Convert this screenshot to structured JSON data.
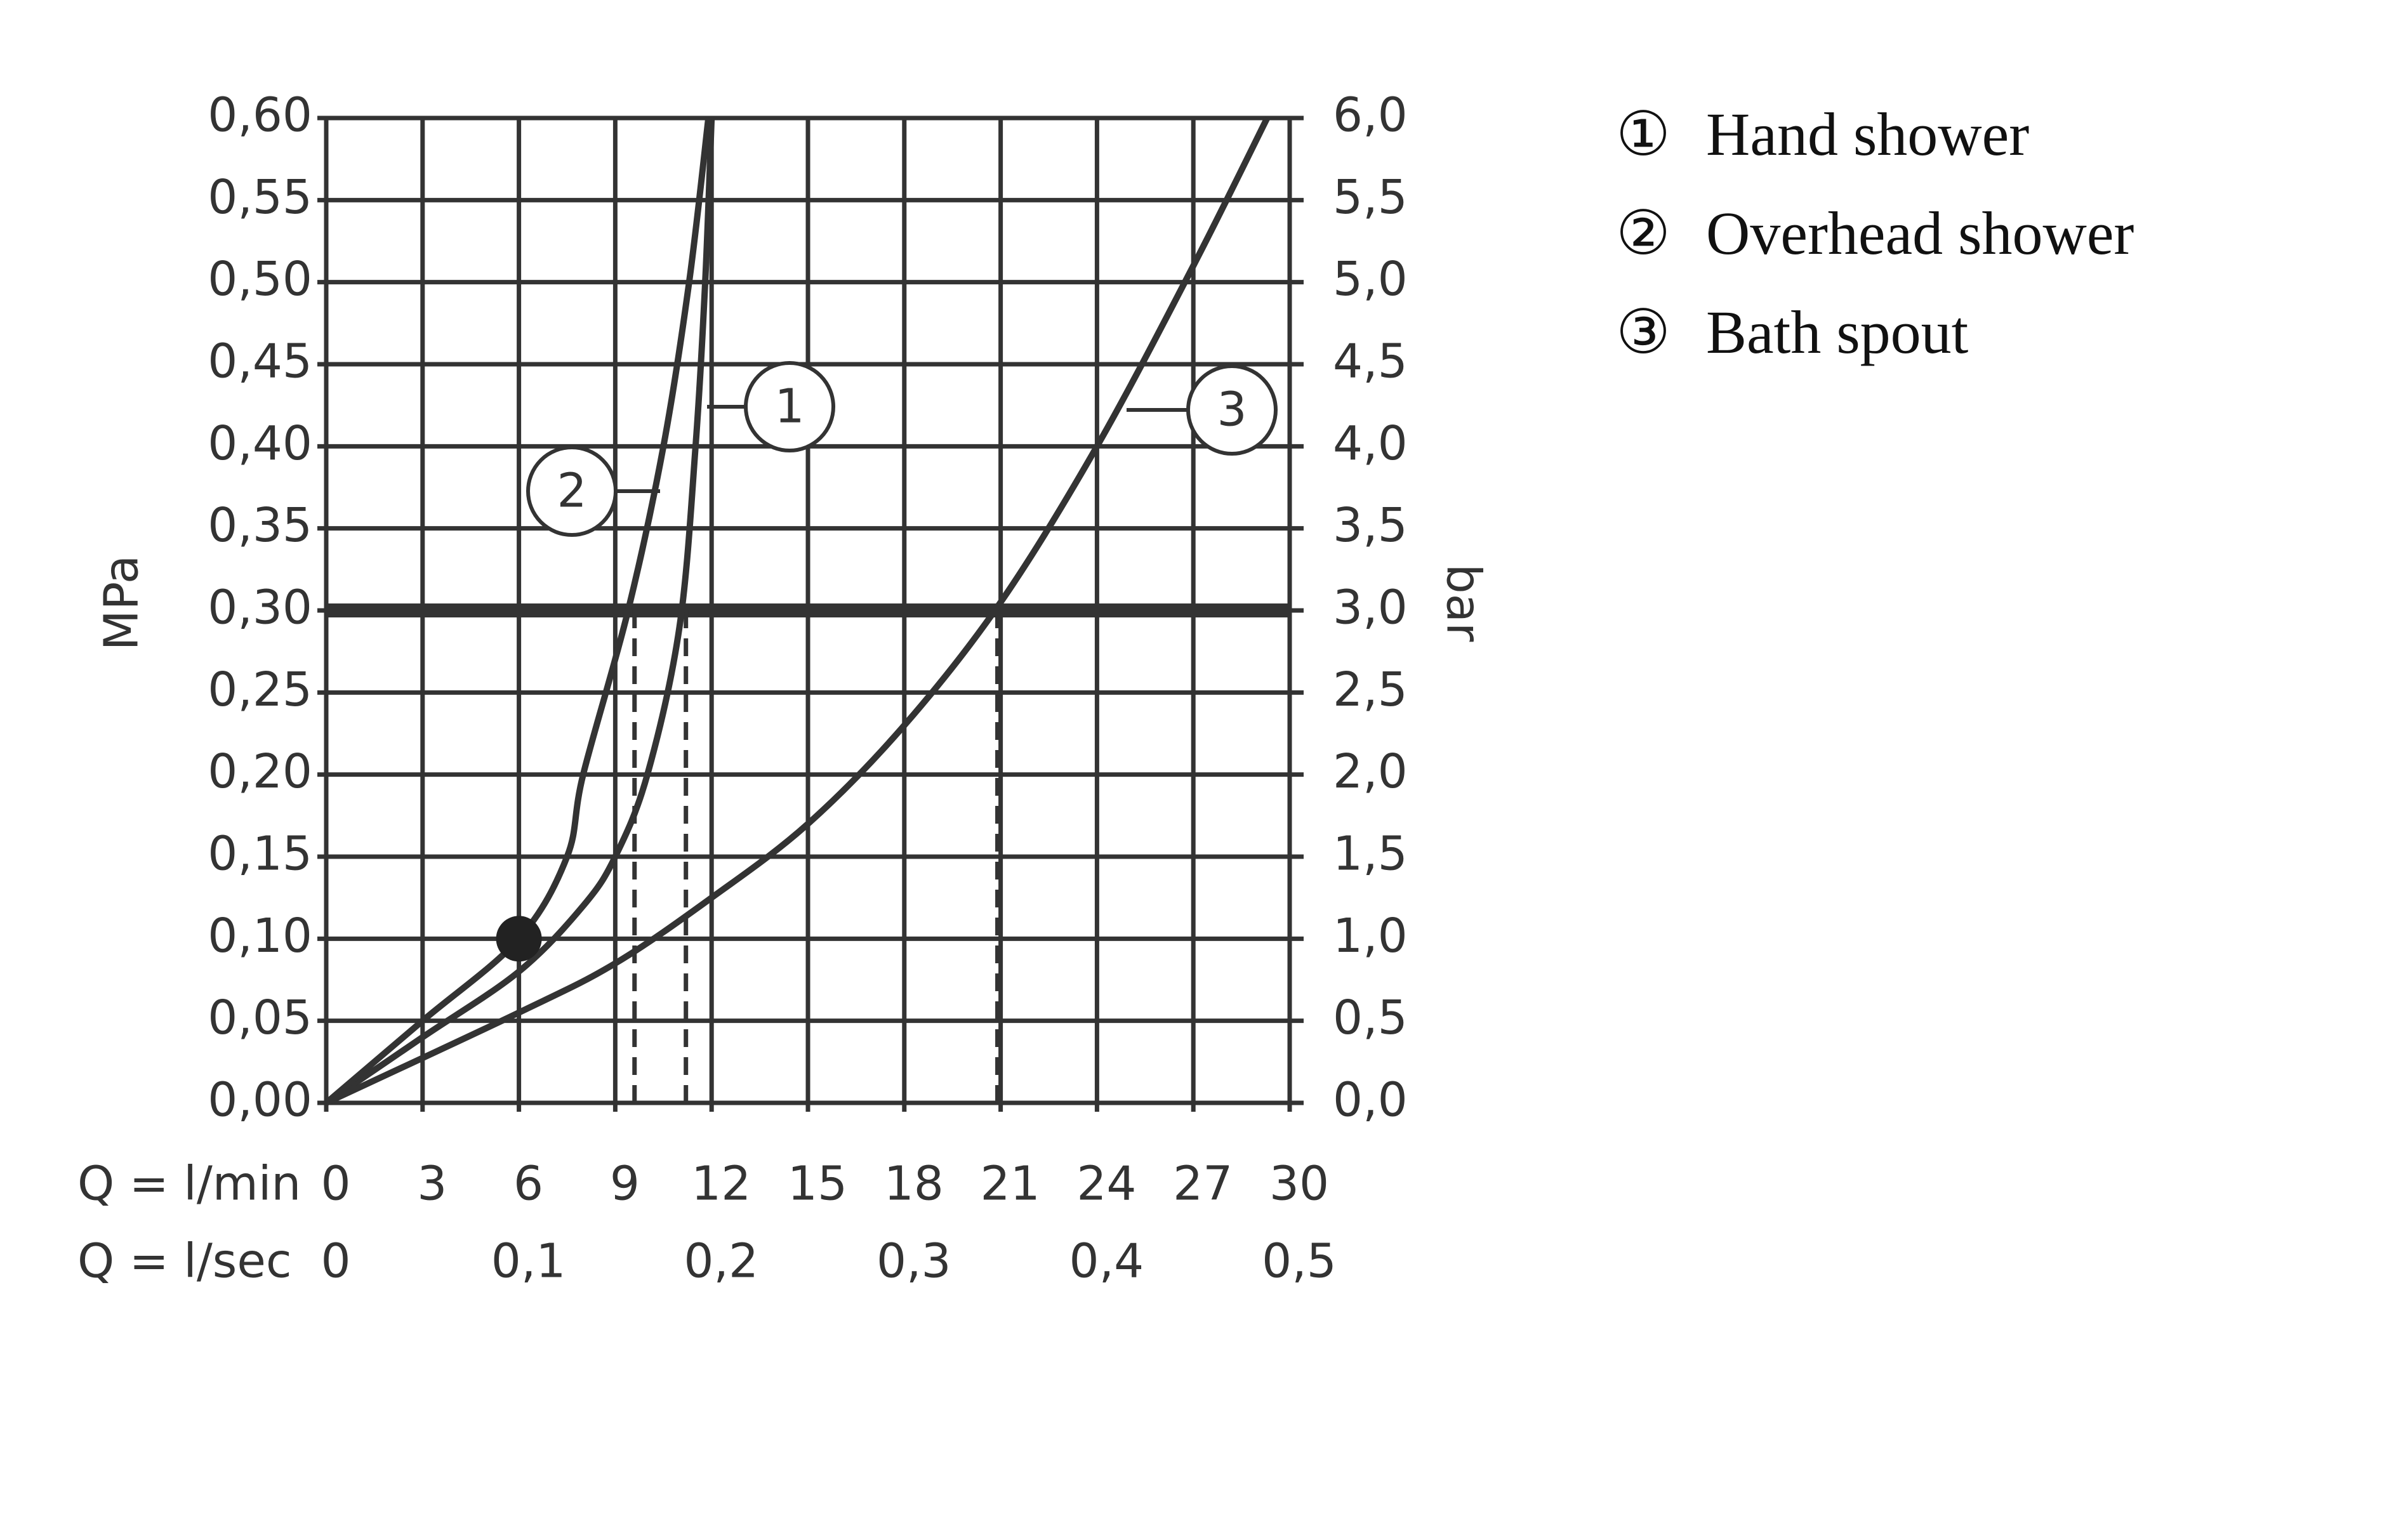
{
  "chart_data": {
    "type": "line",
    "y_label": "MPa",
    "y2_label": "bar",
    "x_label": "Q = l/min",
    "x2_label": "Q = l/sec",
    "xlim": [
      0,
      30
    ],
    "xticks": [
      0,
      3,
      6,
      9,
      12,
      15,
      18,
      21,
      24,
      27,
      30
    ],
    "x2lim": [
      0,
      0.5
    ],
    "x2ticks": [
      0,
      {
        "value": 0.1,
        "label": "0,1"
      },
      {
        "value": 0.2,
        "label": "0,2"
      },
      {
        "value": 0.3,
        "label": "0,3"
      },
      {
        "value": 0.4,
        "label": "0,4"
      },
      {
        "value": 0.5,
        "label": "0,5"
      }
    ],
    "ylim": [
      0,
      0.6
    ],
    "yticks": [
      {
        "value": 0,
        "label": "0,00"
      },
      {
        "value": 0.05,
        "label": "0,05"
      },
      {
        "value": 0.1,
        "label": "0,10"
      },
      {
        "value": 0.15,
        "label": "0,15"
      },
      {
        "value": 0.2,
        "label": "0,20"
      },
      {
        "value": 0.25,
        "label": "0,25"
      },
      {
        "value": 0.3,
        "label": "0,30"
      },
      {
        "value": 0.35,
        "label": "0,35"
      },
      {
        "value": 0.4,
        "label": "0,40"
      },
      {
        "value": 0.45,
        "label": "0,45"
      },
      {
        "value": 0.5,
        "label": "0,50"
      },
      {
        "value": 0.55,
        "label": "0,55"
      },
      {
        "value": 0.6,
        "label": "0,60"
      }
    ],
    "y2lim": [
      0,
      6
    ],
    "y2ticks": [
      {
        "value": 0,
        "label": "0,0"
      },
      {
        "value": 0.5,
        "label": "0,5"
      },
      {
        "value": 1,
        "label": "1,0"
      },
      {
        "value": 1.5,
        "label": "1,5"
      },
      {
        "value": 2,
        "label": "2,0"
      },
      {
        "value": 2.5,
        "label": "2,5"
      },
      {
        "value": 3,
        "label": "3,0"
      },
      {
        "value": 3.5,
        "label": "3,5"
      },
      {
        "value": 4,
        "label": "4,0"
      },
      {
        "value": 4.5,
        "label": "4,5"
      },
      {
        "value": 5,
        "label": "5,0"
      },
      {
        "value": 5.5,
        "label": "5,5"
      },
      {
        "value": 6,
        "label": "6,0"
      }
    ],
    "grid": true,
    "color": "#333333",
    "hline": 0.3,
    "vlines": [
      9.6,
      11.2,
      20.9
    ],
    "point": {
      "x": 6,
      "y": 0.1
    },
    "series": [
      {
        "name": "Hand shower",
        "symbol": "①",
        "label": "1",
        "color": "#333333",
        "x": [
          0,
          3,
          6,
          8,
          9,
          10,
          11,
          11.5,
          11.8,
          12.0
        ],
        "values": [
          0,
          0.04,
          0.08,
          0.12,
          0.15,
          0.2,
          0.29,
          0.4,
          0.5,
          0.6
        ]
      },
      {
        "name": "Overhead shower",
        "symbol": "②",
        "label": "2",
        "color": "#333333",
        "x": [
          0,
          3,
          6,
          7.5,
          8,
          9.4,
          10.5,
          11.3,
          11.9
        ],
        "values": [
          0,
          0.05,
          0.1,
          0.15,
          0.2,
          0.3,
          0.4,
          0.5,
          0.6
        ]
      },
      {
        "name": "Bath spout",
        "symbol": "③",
        "label": "3",
        "color": "#333333",
        "x": [
          0,
          6,
          9,
          12,
          15,
          18,
          21,
          24,
          27,
          29.3
        ],
        "values": [
          0,
          0.055,
          0.085,
          0.125,
          0.17,
          0.23,
          0.305,
          0.4,
          0.51,
          0.6
        ]
      }
    ]
  }
}
